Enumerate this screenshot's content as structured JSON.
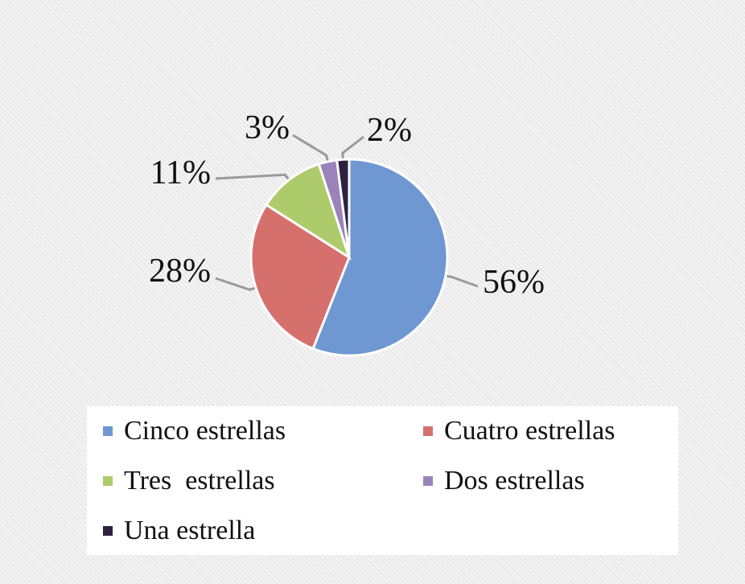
{
  "chart_data": {
    "type": "pie",
    "categories": [
      "Cinco estrellas",
      "Cuatro estrellas",
      "Tres  estrellas",
      "Dos estrellas",
      "Una estrella"
    ],
    "values": [
      56,
      28,
      11,
      3,
      2
    ],
    "labels": [
      "56%",
      "28%",
      "11%",
      "3%",
      "2%"
    ],
    "colors": [
      "#6f97d1",
      "#d6706d",
      "#aecb6b",
      "#9a83bb",
      "#2c2240"
    ],
    "legend_position": "bottom",
    "title": ""
  }
}
